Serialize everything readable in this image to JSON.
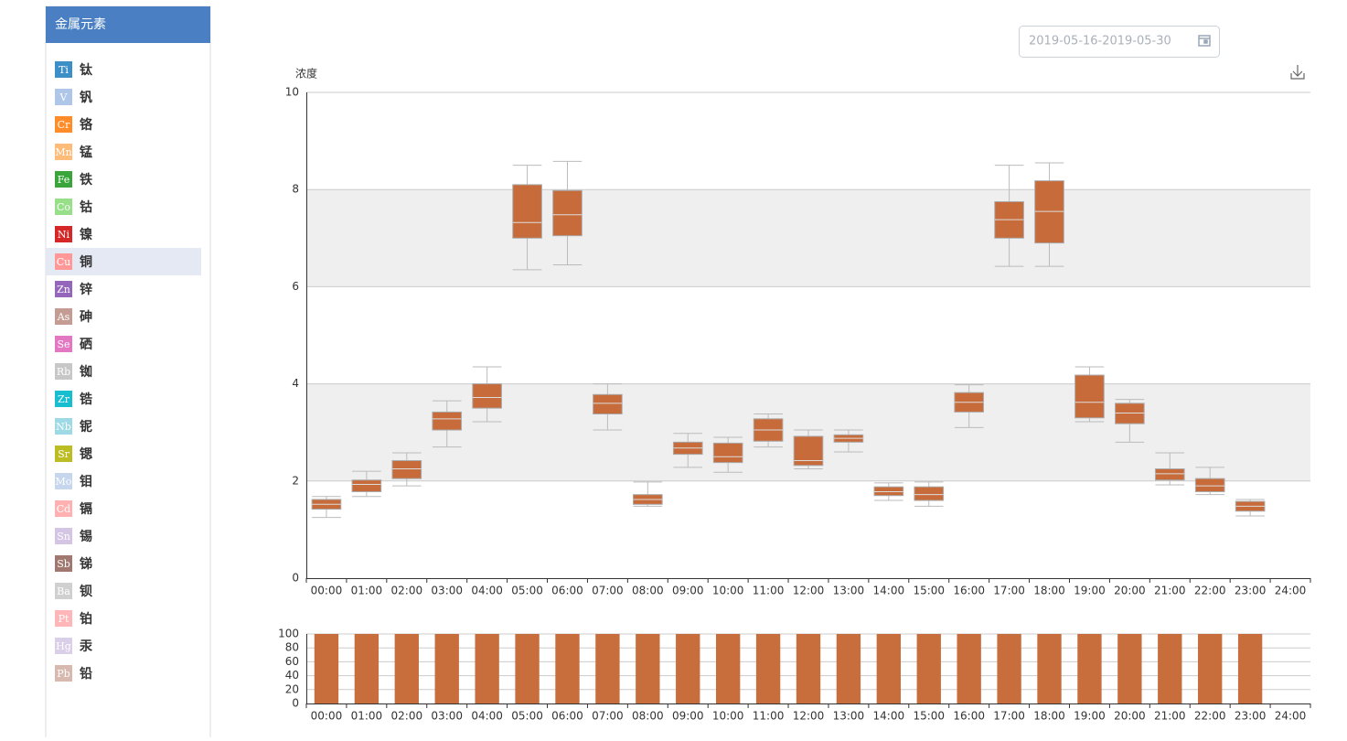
{
  "sidebar": {
    "title": "金属元素",
    "selected": "Cu",
    "items": [
      {
        "symbol": "Ti",
        "name": "钛",
        "color": "#3d8fc7"
      },
      {
        "symbol": "V",
        "name": "钒",
        "color": "#aec7e8"
      },
      {
        "symbol": "Cr",
        "name": "铬",
        "color": "#ff8c28"
      },
      {
        "symbol": "Mn",
        "name": "锰",
        "color": "#ffbb78"
      },
      {
        "symbol": "Fe",
        "name": "铁",
        "color": "#3aa53a"
      },
      {
        "symbol": "Co",
        "name": "钴",
        "color": "#98df8a"
      },
      {
        "symbol": "Ni",
        "name": "镍",
        "color": "#d62728"
      },
      {
        "symbol": "Cu",
        "name": "铜",
        "color": "#ff9896"
      },
      {
        "symbol": "Zn",
        "name": "锌",
        "color": "#9467bd"
      },
      {
        "symbol": "As",
        "name": "砷",
        "color": "#c49c94"
      },
      {
        "symbol": "Se",
        "name": "硒",
        "color": "#e377c2"
      },
      {
        "symbol": "Rb",
        "name": "铷",
        "color": "#c7c7c7"
      },
      {
        "symbol": "Zr",
        "name": "锆",
        "color": "#17becf"
      },
      {
        "symbol": "Nb",
        "name": "铌",
        "color": "#9edae5"
      },
      {
        "symbol": "Sr",
        "name": "锶",
        "color": "#bcbd22"
      },
      {
        "symbol": "Mo",
        "name": "钼",
        "color": "#c6d6ec"
      },
      {
        "symbol": "Cd",
        "name": "镉",
        "color": "#ffb0b0"
      },
      {
        "symbol": "Sn",
        "name": "锡",
        "color": "#d5c5e5"
      },
      {
        "symbol": "Sb",
        "name": "锑",
        "color": "#a0786f"
      },
      {
        "symbol": "Ba",
        "name": "钡",
        "color": "#d0d0d0"
      },
      {
        "symbol": "Pt",
        "name": "铂",
        "color": "#ffb6b9"
      },
      {
        "symbol": "Hg",
        "name": "汞",
        "color": "#dacfe8"
      },
      {
        "symbol": "Pb",
        "name": "铅",
        "color": "#d8b9b0"
      }
    ]
  },
  "date_range": "2019-05-16-2019-05-30",
  "chart_data": [
    {
      "type": "boxplot",
      "y_label": "浓度",
      "color": "#c76b3a",
      "grid": true,
      "categories": [
        "00:00",
        "01:00",
        "02:00",
        "03:00",
        "04:00",
        "05:00",
        "06:00",
        "07:00",
        "08:00",
        "09:00",
        "10:00",
        "11:00",
        "12:00",
        "13:00",
        "14:00",
        "15:00",
        "16:00",
        "17:00",
        "18:00",
        "19:00",
        "20:00",
        "21:00",
        "22:00",
        "23:00",
        "24:00"
      ],
      "values": [
        [
          1.25,
          1.42,
          1.52,
          1.62,
          1.68
        ],
        [
          1.68,
          1.78,
          1.93,
          2.02,
          2.2
        ],
        [
          1.9,
          2.05,
          2.25,
          2.42,
          2.58
        ],
        [
          2.7,
          3.05,
          3.28,
          3.42,
          3.65
        ],
        [
          3.22,
          3.5,
          3.72,
          4.0,
          4.35
        ],
        [
          6.35,
          7.0,
          7.32,
          8.1,
          8.5
        ],
        [
          6.45,
          7.05,
          7.48,
          7.98,
          8.58
        ],
        [
          3.05,
          3.38,
          3.6,
          3.78,
          4.0
        ],
        [
          1.48,
          1.52,
          1.62,
          1.72,
          1.98
        ],
        [
          2.28,
          2.55,
          2.68,
          2.8,
          2.98
        ],
        [
          2.18,
          2.38,
          2.5,
          2.78,
          2.9
        ],
        [
          2.7,
          2.82,
          3.05,
          3.28,
          3.38
        ],
        [
          2.25,
          2.32,
          2.42,
          2.92,
          3.05
        ],
        [
          2.6,
          2.8,
          2.88,
          2.95,
          3.05
        ],
        [
          1.6,
          1.7,
          1.78,
          1.88,
          1.96
        ],
        [
          1.48,
          1.6,
          1.72,
          1.88,
          1.98
        ],
        [
          3.1,
          3.42,
          3.62,
          3.82,
          3.98
        ],
        [
          6.42,
          7.0,
          7.38,
          7.75,
          8.5
        ],
        [
          6.42,
          6.9,
          7.55,
          8.18,
          8.55
        ],
        [
          3.22,
          3.3,
          3.62,
          4.18,
          4.35
        ],
        [
          2.8,
          3.18,
          3.4,
          3.6,
          3.68
        ],
        [
          1.92,
          2.02,
          2.15,
          2.25,
          2.58
        ],
        [
          1.72,
          1.78,
          1.9,
          2.05,
          2.28
        ],
        [
          1.28,
          1.38,
          1.48,
          1.58,
          1.62
        ],
        null
      ],
      "bands": [
        [
          2,
          4
        ],
        [
          6,
          8
        ]
      ],
      "ylim": [
        0,
        10
      ],
      "yticks": [
        0,
        2,
        4,
        6,
        8,
        10
      ]
    },
    {
      "type": "bar",
      "color": "#c86d3c",
      "grid": true,
      "categories": [
        "00:00",
        "01:00",
        "02:00",
        "03:00",
        "04:00",
        "05:00",
        "06:00",
        "07:00",
        "08:00",
        "09:00",
        "10:00",
        "11:00",
        "12:00",
        "13:00",
        "14:00",
        "15:00",
        "16:00",
        "17:00",
        "18:00",
        "19:00",
        "20:00",
        "21:00",
        "22:00",
        "23:00",
        "24:00"
      ],
      "values": [
        100,
        100,
        100,
        100,
        100,
        100,
        100,
        100,
        100,
        100,
        100,
        100,
        100,
        100,
        100,
        100,
        100,
        100,
        100,
        100,
        100,
        100,
        100,
        100,
        null
      ],
      "ylim": [
        0,
        100
      ],
      "yticks": [
        0,
        20,
        40,
        60,
        80,
        100
      ]
    }
  ]
}
